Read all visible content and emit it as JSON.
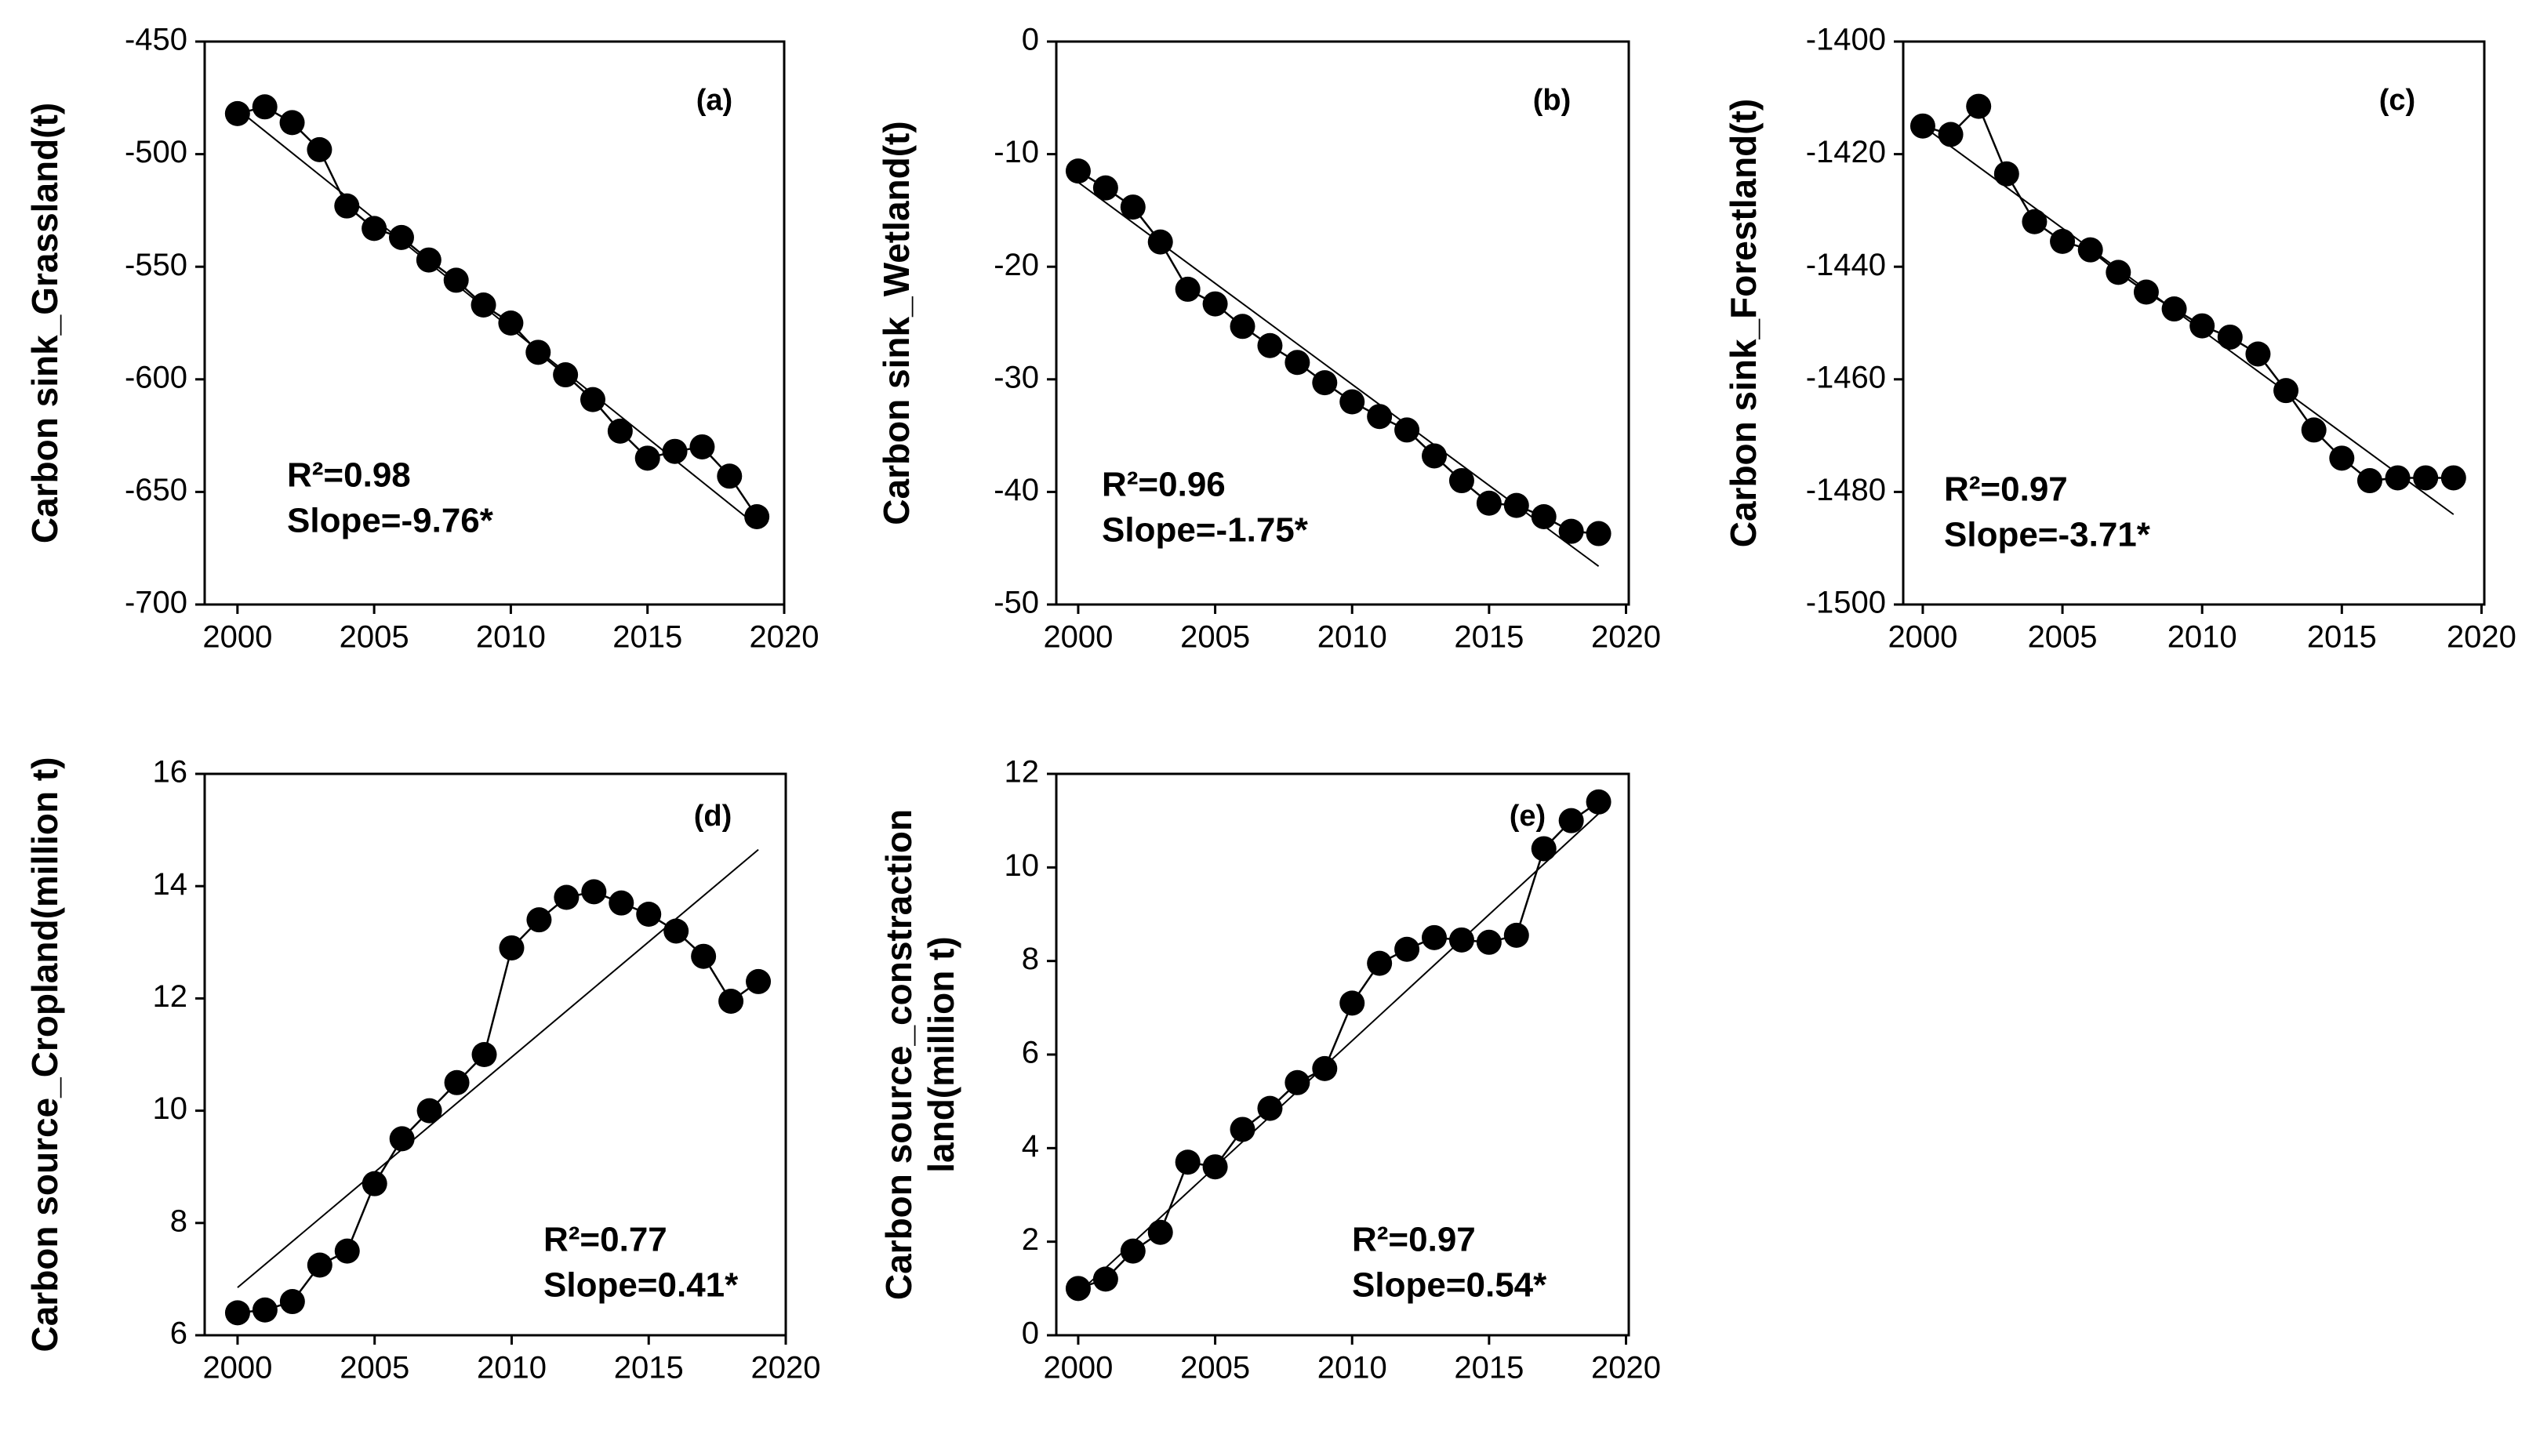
{
  "chart_data": [
    {
      "type": "line",
      "label": "(a)",
      "ylabel": [
        "Carbon sink_Grassland(t)"
      ],
      "r2": "R²=0.98",
      "slope": "Slope=-9.76*",
      "x": [
        2000,
        2001,
        2002,
        2003,
        2004,
        2005,
        2006,
        2007,
        2008,
        2009,
        2010,
        2011,
        2012,
        2013,
        2014,
        2015,
        2016,
        2017,
        2018,
        2019
      ],
      "values": [
        -482,
        -479,
        -486,
        -498,
        -523,
        -533,
        -537,
        -547,
        -556,
        -567,
        -575,
        -588,
        -598,
        -609,
        -623,
        -635,
        -632,
        -630,
        -643,
        -661
      ],
      "trend": {
        "x": [
          2000,
          2019
        ],
        "values": [
          -480,
          -665
        ]
      },
      "color": "#000000",
      "xlim": [
        1998.8,
        2020
      ],
      "xticks": [
        2000,
        2005,
        2010,
        2015,
        2020
      ],
      "ylim": [
        -700,
        -450
      ],
      "yticks": [
        -700,
        -650,
        -600,
        -550,
        -500,
        -450
      ]
    },
    {
      "type": "line",
      "label": "(b)",
      "ylabel": [
        "Carbon sink_Wetland(t)"
      ],
      "r2": "R²=0.96",
      "slope": "Slope=-1.75*",
      "x": [
        2000,
        2001,
        2002,
        2003,
        2004,
        2005,
        2006,
        2007,
        2008,
        2009,
        2010,
        2011,
        2012,
        2013,
        2014,
        2015,
        2016,
        2017,
        2018,
        2019
      ],
      "values": [
        -11.5,
        -13,
        -14.7,
        -17.8,
        -22,
        -23.3,
        -25.3,
        -27,
        -28.5,
        -30.3,
        -32,
        -33.3,
        -34.5,
        -36.8,
        -39,
        -41,
        -41.2,
        -42.2,
        -43.5,
        -43.7
      ],
      "trend": {
        "x": [
          2000,
          2019
        ],
        "values": [
          -12.5,
          -46.6
        ]
      },
      "color": "#000000",
      "xlim": [
        1999.2,
        2020.1
      ],
      "xticks": [
        2000,
        2005,
        2010,
        2015,
        2020
      ],
      "ylim": [
        -50,
        0
      ],
      "yticks": [
        -50,
        -40,
        -30,
        -20,
        -10,
        0
      ]
    },
    {
      "type": "line",
      "label": "(c)",
      "ylabel": [
        "Carbon sink_Forestland(t)"
      ],
      "r2": "R²=0.97",
      "slope": "Slope=-3.71*",
      "x": [
        2000,
        2001,
        2002,
        2003,
        2004,
        2005,
        2006,
        2007,
        2008,
        2009,
        2010,
        2011,
        2012,
        2013,
        2014,
        2015,
        2016,
        2017,
        2018,
        2019
      ],
      "values": [
        -1415,
        -1416.5,
        -1411.5,
        -1423.5,
        -1432,
        -1435.5,
        -1437,
        -1441,
        -1444.5,
        -1447.5,
        -1450.5,
        -1452.5,
        -1455.5,
        -1462,
        -1469,
        -1474,
        -1478,
        -1477.5,
        -1477.5,
        -1477.5
      ],
      "trend": {
        "x": [
          2000,
          2019
        ],
        "values": [
          -1415,
          -1484
        ]
      },
      "color": "#000000",
      "xlim": [
        1999.3,
        2020.1
      ],
      "xticks": [
        2000,
        2005,
        2010,
        2015,
        2020
      ],
      "ylim": [
        -1500,
        -1400
      ],
      "yticks": [
        -1500,
        -1480,
        -1460,
        -1440,
        -1420,
        -1400
      ]
    },
    {
      "type": "line",
      "label": "(d)",
      "ylabel": [
        "Carbon source_Cropland(million t)"
      ],
      "r2": "R²=0.77",
      "slope": "Slope=0.41*",
      "x": [
        2000,
        2001,
        2002,
        2003,
        2004,
        2005,
        2006,
        2007,
        2008,
        2009,
        2010,
        2011,
        2012,
        2013,
        2014,
        2015,
        2016,
        2017,
        2018,
        2019
      ],
      "values": [
        6.4,
        6.45,
        6.6,
        7.25,
        7.5,
        8.7,
        9.5,
        10,
        10.5,
        11,
        12.9,
        13.4,
        13.8,
        13.9,
        13.7,
        13.5,
        13.2,
        12.75,
        11.95,
        12.3
      ],
      "trend": {
        "x": [
          2000,
          2019
        ],
        "values": [
          6.85,
          14.65
        ]
      },
      "color": "#000000",
      "xlim": [
        1998.8,
        2020
      ],
      "xticks": [
        2000,
        2005,
        2010,
        2015,
        2020
      ],
      "ylim": [
        6,
        16
      ],
      "yticks": [
        6,
        8,
        10,
        12,
        14,
        16
      ]
    },
    {
      "type": "line",
      "label": "(e)",
      "ylabel": [
        "Carbon source_constraction",
        "land(million t)"
      ],
      "r2": "R²=0.97",
      "slope": "Slope=0.54*",
      "x": [
        2000,
        2001,
        2002,
        2003,
        2004,
        2005,
        2006,
        2007,
        2008,
        2009,
        2010,
        2011,
        2012,
        2013,
        2014,
        2015,
        2016,
        2017,
        2018,
        2019
      ],
      "values": [
        1.0,
        1.2,
        1.8,
        2.2,
        3.7,
        3.6,
        4.4,
        4.85,
        5.4,
        5.7,
        7.1,
        7.95,
        8.25,
        8.5,
        8.45,
        8.4,
        8.55,
        10.4,
        11.0,
        11.4
      ],
      "trend": {
        "x": [
          2000,
          2019
        ],
        "values": [
          0.9,
          11.15
        ]
      },
      "color": "#000000",
      "xlim": [
        1999.2,
        2020.1
      ],
      "xticks": [
        2000,
        2005,
        2010,
        2015,
        2020
      ],
      "ylim": [
        0,
        12
      ],
      "yticks": [
        0,
        2,
        4,
        6,
        8,
        10,
        12
      ]
    }
  ]
}
